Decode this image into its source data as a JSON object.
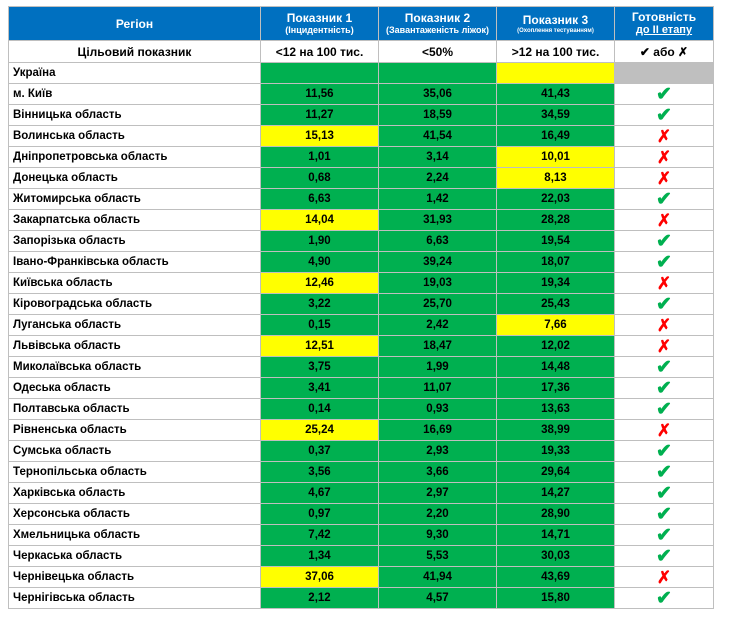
{
  "headers": {
    "region": "Регіон",
    "ind1_title": "Показник 1",
    "ind1_sub": "(Інцидентність)",
    "ind2_title": "Показник 2",
    "ind2_sub": "(Завантаженість ліжок)",
    "ind3_title": "Показник 3",
    "ind3_sub": "(Охоплення тестуванням)",
    "ready_title": "Готовність",
    "ready_sub": "до ІІ етапу"
  },
  "target": {
    "label": "Цільовий показник",
    "ind1": "<12 на 100 тис.",
    "ind2": "<50%",
    "ind3": ">12 на 100 тис.",
    "ready": "✔ або ✗"
  },
  "ukraine_label": "Україна",
  "colors": {
    "header": "#0070c0",
    "green": "#00b050",
    "yellow": "#ffff00",
    "grey": "#bfbfbf",
    "cross": "#ff0000"
  },
  "rows": [
    {
      "region": "м. Київ",
      "v1": "11,56",
      "c1": "green",
      "v2": "35,06",
      "c2": "green",
      "v3": "41,43",
      "c3": "green",
      "ready": true
    },
    {
      "region": "Вінницька область",
      "v1": "11,27",
      "c1": "green",
      "v2": "18,59",
      "c2": "green",
      "v3": "34,59",
      "c3": "green",
      "ready": true
    },
    {
      "region": "Волинська область",
      "v1": "15,13",
      "c1": "yellow",
      "v2": "41,54",
      "c2": "green",
      "v3": "16,49",
      "c3": "green",
      "ready": false
    },
    {
      "region": "Дніпропетровська область",
      "v1": "1,01",
      "c1": "green",
      "v2": "3,14",
      "c2": "green",
      "v3": "10,01",
      "c3": "yellow",
      "ready": false
    },
    {
      "region": "Донецька область",
      "v1": "0,68",
      "c1": "green",
      "v2": "2,24",
      "c2": "green",
      "v3": "8,13",
      "c3": "yellow",
      "ready": false
    },
    {
      "region": "Житомирська область",
      "v1": "6,63",
      "c1": "green",
      "v2": "1,42",
      "c2": "green",
      "v3": "22,03",
      "c3": "green",
      "ready": true
    },
    {
      "region": "Закарпатська область",
      "v1": "14,04",
      "c1": "yellow",
      "v2": "31,93",
      "c2": "green",
      "v3": "28,28",
      "c3": "green",
      "ready": false
    },
    {
      "region": "Запорізька область",
      "v1": "1,90",
      "c1": "green",
      "v2": "6,63",
      "c2": "green",
      "v3": "19,54",
      "c3": "green",
      "ready": true
    },
    {
      "region": "Івано-Франківська область",
      "v1": "4,90",
      "c1": "green",
      "v2": "39,24",
      "c2": "green",
      "v3": "18,07",
      "c3": "green",
      "ready": true
    },
    {
      "region": "Київська область",
      "v1": "12,46",
      "c1": "yellow",
      "v2": "19,03",
      "c2": "green",
      "v3": "19,34",
      "c3": "green",
      "ready": false
    },
    {
      "region": "Кіровоградська область",
      "v1": "3,22",
      "c1": "green",
      "v2": "25,70",
      "c2": "green",
      "v3": "25,43",
      "c3": "green",
      "ready": true
    },
    {
      "region": "Луганська область",
      "v1": "0,15",
      "c1": "green",
      "v2": "2,42",
      "c2": "green",
      "v3": "7,66",
      "c3": "yellow",
      "ready": false
    },
    {
      "region": "Львівська область",
      "v1": "12,51",
      "c1": "yellow",
      "v2": "18,47",
      "c2": "green",
      "v3": "12,02",
      "c3": "green",
      "ready": false
    },
    {
      "region": "Миколаївська область",
      "v1": "3,75",
      "c1": "green",
      "v2": "1,99",
      "c2": "green",
      "v3": "14,48",
      "c3": "green",
      "ready": true
    },
    {
      "region": "Одеська область",
      "v1": "3,41",
      "c1": "green",
      "v2": "11,07",
      "c2": "green",
      "v3": "17,36",
      "c3": "green",
      "ready": true
    },
    {
      "region": "Полтавська область",
      "v1": "0,14",
      "c1": "green",
      "v2": "0,93",
      "c2": "green",
      "v3": "13,63",
      "c3": "green",
      "ready": true
    },
    {
      "region": "Рівненська область",
      "v1": "25,24",
      "c1": "yellow",
      "v2": "16,69",
      "c2": "green",
      "v3": "38,99",
      "c3": "green",
      "ready": false
    },
    {
      "region": "Сумська область",
      "v1": "0,37",
      "c1": "green",
      "v2": "2,93",
      "c2": "green",
      "v3": "19,33",
      "c3": "green",
      "ready": true
    },
    {
      "region": "Тернопільська область",
      "v1": "3,56",
      "c1": "green",
      "v2": "3,66",
      "c2": "green",
      "v3": "29,64",
      "c3": "green",
      "ready": true
    },
    {
      "region": "Харківська область",
      "v1": "4,67",
      "c1": "green",
      "v2": "2,97",
      "c2": "green",
      "v3": "14,27",
      "c3": "green",
      "ready": true
    },
    {
      "region": "Херсонська область",
      "v1": "0,97",
      "c1": "green",
      "v2": "2,20",
      "c2": "green",
      "v3": "28,90",
      "c3": "green",
      "ready": true
    },
    {
      "region": "Хмельницька область",
      "v1": "7,42",
      "c1": "green",
      "v2": "9,30",
      "c2": "green",
      "v3": "14,71",
      "c3": "green",
      "ready": true
    },
    {
      "region": "Черкаська область",
      "v1": "1,34",
      "c1": "green",
      "v2": "5,53",
      "c2": "green",
      "v3": "30,03",
      "c3": "green",
      "ready": true
    },
    {
      "region": "Чернівецька область",
      "v1": "37,06",
      "c1": "yellow",
      "v2": "41,94",
      "c2": "green",
      "v3": "43,69",
      "c3": "green",
      "ready": false
    },
    {
      "region": "Чернігівська область",
      "v1": "2,12",
      "c1": "green",
      "v2": "4,57",
      "c2": "green",
      "v3": "15,80",
      "c3": "green",
      "ready": true
    }
  ]
}
